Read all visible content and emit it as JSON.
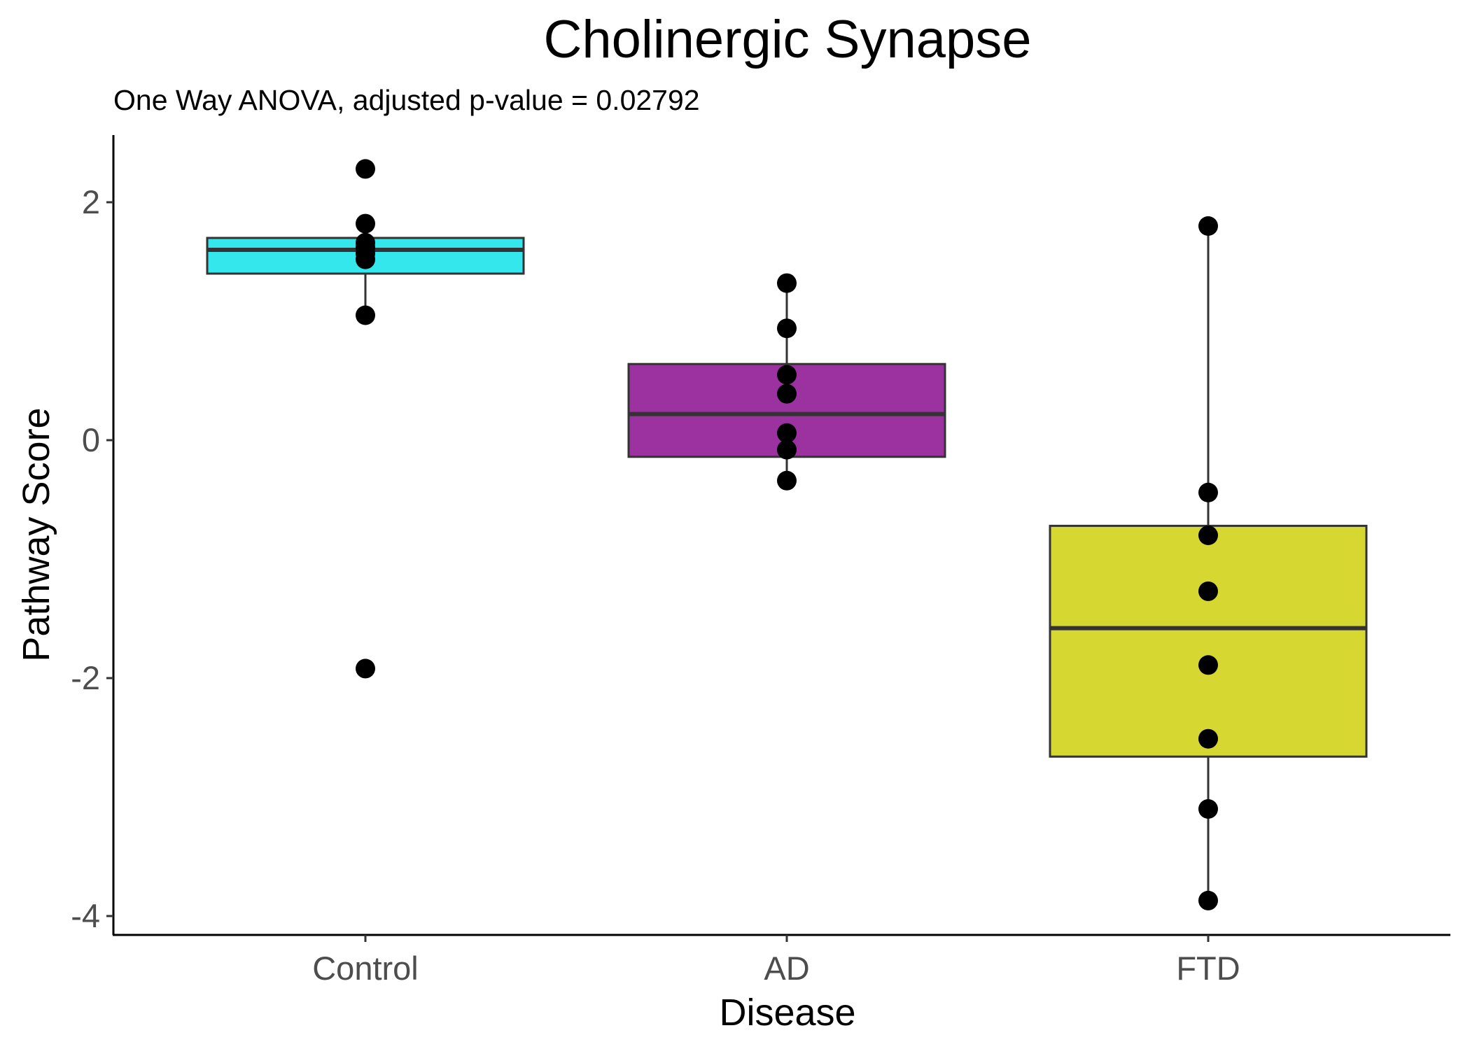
{
  "chart_data": {
    "type": "box",
    "title": "Cholinergic Synapse",
    "subtitle": "One Way ANOVA, adjusted p-value = 0.02792",
    "xlabel": "Disease",
    "ylabel": "Pathway Score",
    "ylim": [
      -4.1,
      2.6
    ],
    "yticks": [
      {
        "value": 2,
        "label": "2"
      },
      {
        "value": 0,
        "label": "0"
      },
      {
        "value": -2,
        "label": "-2"
      },
      {
        "value": -4,
        "label": "-4"
      }
    ],
    "categories": [
      "Control",
      "AD",
      "FTD"
    ],
    "groups": [
      {
        "category": "Control",
        "color": "#33e7ec",
        "q1": 1.4,
        "median": 1.6,
        "q3": 1.7,
        "whisker_low": 1.05,
        "whisker_high": 1.82,
        "points": [
          2.28,
          1.82,
          1.66,
          1.62,
          1.57,
          1.52,
          1.05,
          -1.92
        ]
      },
      {
        "category": "AD",
        "color": "#9c31a0",
        "q1": -0.14,
        "median": 0.22,
        "q3": 0.64,
        "whisker_low": -0.34,
        "whisker_high": 1.32,
        "points": [
          1.32,
          0.94,
          0.55,
          0.39,
          0.06,
          -0.08,
          -0.34
        ]
      },
      {
        "category": "FTD",
        "color": "#d7d731",
        "q1": -2.66,
        "median": -1.58,
        "q3": -0.72,
        "whisker_low": -3.87,
        "whisker_high": 1.8,
        "points": [
          1.8,
          -0.44,
          -0.8,
          -1.27,
          -1.89,
          -2.51,
          -3.1,
          -3.87
        ]
      }
    ],
    "legend": "none",
    "grid": false
  }
}
